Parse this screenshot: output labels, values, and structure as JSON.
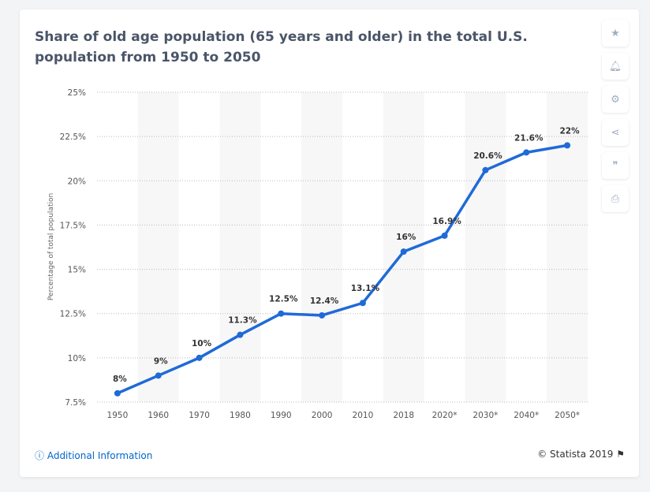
{
  "title": "Share of old age population (65 years and older) in the total U.S. population from 1950 to 2050",
  "tools": [
    {
      "name": "star-icon",
      "glyph": "★"
    },
    {
      "name": "bell-icon",
      "glyph": "🔔︎"
    },
    {
      "name": "gear-icon",
      "glyph": "⚙"
    },
    {
      "name": "share-icon",
      "glyph": "⋖"
    },
    {
      "name": "quote-icon",
      "glyph": "❞"
    },
    {
      "name": "print-icon",
      "glyph": "⎙"
    }
  ],
  "footer": {
    "additional_info": "Additional Information",
    "copyright": "© Statista 2019"
  },
  "colors": {
    "line": "#1f6ad8",
    "band": "#f7f7f7",
    "title": "#4a5568"
  },
  "chart_data": {
    "type": "line",
    "title": "Share of old age population (65 years and older) in the total U.S. population from 1950 to 2050",
    "xlabel": "",
    "ylabel": "Percentage of total population",
    "categories": [
      "1950",
      "1960",
      "1970",
      "1980",
      "1990",
      "2000",
      "2010",
      "2018",
      "2020*",
      "2030*",
      "2040*",
      "2050*"
    ],
    "values": [
      8,
      9,
      10,
      11.3,
      12.5,
      12.4,
      13.1,
      16,
      16.9,
      20.6,
      21.6,
      22
    ],
    "data_labels": [
      "8%",
      "9%",
      "10%",
      "11.3%",
      "12.5%",
      "12.4%",
      "13.1%",
      "16%",
      "16.9%",
      "20.6%",
      "21.6%",
      "22%"
    ],
    "ylim": [
      7.5,
      25
    ],
    "yticks": [
      7.5,
      10,
      12.5,
      15,
      17.5,
      20,
      22.5,
      25
    ],
    "ytick_labels": [
      "7.5%",
      "10%",
      "12.5%",
      "15%",
      "17.5%",
      "20%",
      "22.5%",
      "25%"
    ],
    "grid": true,
    "legend": "none"
  }
}
